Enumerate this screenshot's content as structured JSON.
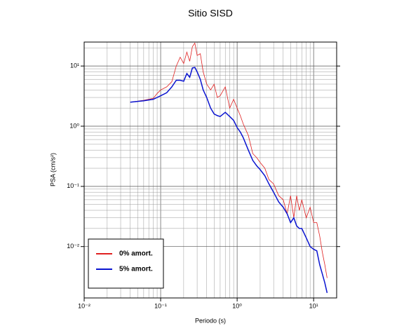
{
  "chart_data": {
    "type": "line",
    "title": "Sitio SISD",
    "x_label": "Periodo (s)",
    "y_label": "PSA (cm/s²)",
    "x_scale": "log",
    "y_scale": "log",
    "grid": true,
    "minor_grid": true,
    "legend": "lower left",
    "xlim": [
      0.01,
      20
    ],
    "ylim": [
      0.0014,
      25
    ],
    "xticks": [
      {
        "value": 0.01,
        "label": "10⁻²"
      },
      {
        "value": 0.1,
        "label": "10⁻¹"
      },
      {
        "value": 1,
        "label": "10⁰"
      },
      {
        "value": 10,
        "label": "10¹"
      }
    ],
    "yticks": [
      {
        "value": 0.01,
        "label": "10⁻²"
      },
      {
        "value": 0.1,
        "label": "10⁻¹"
      },
      {
        "value": 1,
        "label": "10⁰"
      },
      {
        "value": 10,
        "label": "10¹"
      }
    ],
    "x": [
      0.04,
      0.06,
      0.08,
      0.09,
      0.1,
      0.12,
      0.14,
      0.16,
      0.18,
      0.2,
      0.22,
      0.24,
      0.26,
      0.28,
      0.3,
      0.33,
      0.36,
      0.4,
      0.45,
      0.5,
      0.55,
      0.6,
      0.7,
      0.8,
      0.9,
      1.0,
      1.1,
      1.2,
      1.4,
      1.6,
      1.8,
      2.0,
      2.3,
      2.6,
      3.0,
      3.5,
      4,
      4.5,
      5,
      5.5,
      6,
      6.5,
      7,
      8,
      9,
      10,
      11,
      12,
      13,
      14,
      15
    ],
    "series": [
      {
        "name": "0% amort.",
        "color": "#e02020",
        "width": 0.8,
        "values": [
          2.5,
          2.7,
          2.9,
          3.5,
          4,
          4.5,
          5.5,
          10,
          14,
          11,
          17,
          12,
          21,
          24,
          15,
          16,
          8,
          5,
          4,
          5,
          3,
          3.2,
          4.5,
          2,
          2.8,
          2,
          1.5,
          1.1,
          0.7,
          0.35,
          0.3,
          0.25,
          0.2,
          0.13,
          0.11,
          0.07,
          0.06,
          0.035,
          0.07,
          0.03,
          0.07,
          0.04,
          0.06,
          0.03,
          0.045,
          0.025,
          0.025,
          0.015,
          0.008,
          0.005,
          0.003
        ]
      },
      {
        "name": "5% amort.",
        "color": "#0a14d0",
        "width": 1.5,
        "values": [
          2.5,
          2.65,
          2.8,
          3.0,
          3.2,
          3.6,
          4.5,
          5.8,
          5.8,
          5.6,
          7.5,
          6.5,
          9.3,
          9.5,
          8,
          6,
          4,
          3,
          2,
          1.6,
          1.5,
          1.45,
          1.7,
          1.45,
          1.25,
          0.95,
          0.8,
          0.65,
          0.4,
          0.27,
          0.22,
          0.19,
          0.15,
          0.11,
          0.08,
          0.055,
          0.045,
          0.035,
          0.025,
          0.03,
          0.022,
          0.02,
          0.02,
          0.014,
          0.01,
          0.009,
          0.0085,
          0.005,
          0.0035,
          0.0025,
          0.0017
        ]
      }
    ]
  }
}
